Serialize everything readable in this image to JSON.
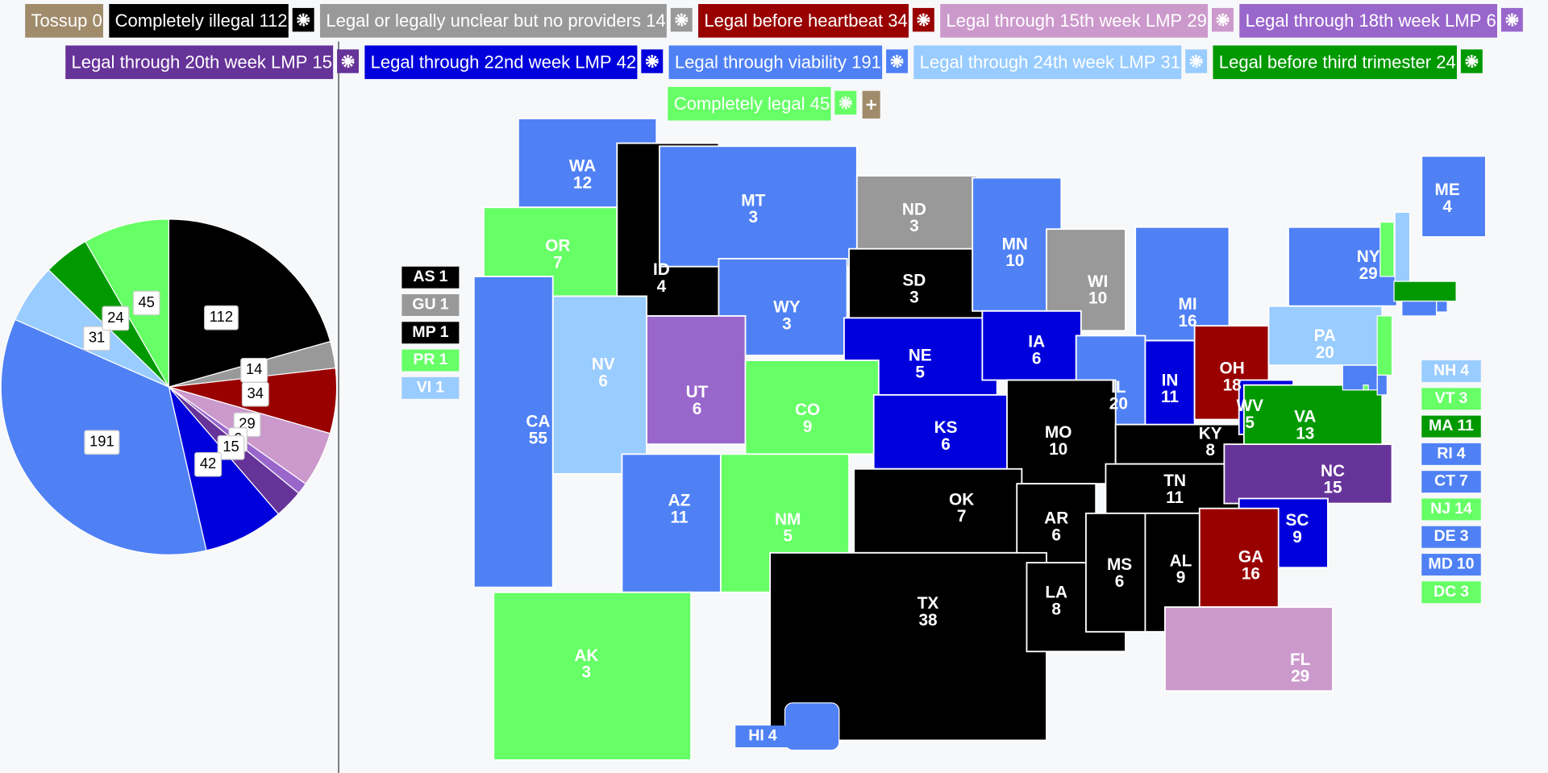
{
  "legend": [
    {
      "name": "Tossup",
      "count": 0,
      "color": "#a08b6b"
    },
    {
      "name": "Completely illegal",
      "count": 112,
      "color": "#000000"
    },
    {
      "name": "Legal or legally unclear but no providers",
      "count": 14,
      "color": "#999999"
    },
    {
      "name": "Legal before heartbeat",
      "count": 34,
      "color": "#990000"
    },
    {
      "name": "Legal through 15th week LMP",
      "count": 29,
      "color": "#cc99cc"
    },
    {
      "name": "Legal through 18th week LMP",
      "count": 6,
      "color": "#9966cc"
    },
    {
      "name": "Legal through 20th week LMP",
      "count": 15,
      "color": "#663399"
    },
    {
      "name": "Legal through 22nd week LMP",
      "count": 42,
      "color": "#0000dd"
    },
    {
      "name": "Legal through viability",
      "count": 191,
      "color": "#4f81f5"
    },
    {
      "name": "Legal through 24th week LMP",
      "count": 31,
      "color": "#99ccff"
    },
    {
      "name": "Legal before third trimester",
      "count": 24,
      "color": "#009900"
    },
    {
      "name": "Completely legal",
      "count": 45,
      "color": "#66ff66"
    }
  ],
  "states": [
    {
      "abbr": "WA",
      "ev": 12,
      "color": "#4f81f5"
    },
    {
      "abbr": "OR",
      "ev": 7,
      "color": "#66ff66"
    },
    {
      "abbr": "ID",
      "ev": 4,
      "color": "#000000"
    },
    {
      "abbr": "MT",
      "ev": 3,
      "color": "#4f81f5"
    },
    {
      "abbr": "ND",
      "ev": 3,
      "color": "#999999"
    },
    {
      "abbr": "SD",
      "ev": 3,
      "color": "#000000"
    },
    {
      "abbr": "WY",
      "ev": 3,
      "color": "#4f81f5"
    },
    {
      "abbr": "NE",
      "ev": 5,
      "color": "#0000dd"
    },
    {
      "abbr": "MN",
      "ev": 10,
      "color": "#4f81f5"
    },
    {
      "abbr": "WI",
      "ev": 10,
      "color": "#999999"
    },
    {
      "abbr": "MI",
      "ev": 16,
      "color": "#4f81f5"
    },
    {
      "abbr": "IA",
      "ev": 6,
      "color": "#0000dd"
    },
    {
      "abbr": "IL",
      "ev": 20,
      "color": "#4f81f5"
    },
    {
      "abbr": "IN",
      "ev": 11,
      "color": "#0000dd"
    },
    {
      "abbr": "OH",
      "ev": 18,
      "color": "#990000"
    },
    {
      "abbr": "PA",
      "ev": 20,
      "color": "#99ccff"
    },
    {
      "abbr": "NY",
      "ev": 29,
      "color": "#4f81f5"
    },
    {
      "abbr": "ME",
      "ev": 4,
      "color": "#4f81f5"
    },
    {
      "abbr": "NV",
      "ev": 6,
      "color": "#99ccff"
    },
    {
      "abbr": "CA",
      "ev": 55,
      "color": "#4f81f5"
    },
    {
      "abbr": "UT",
      "ev": 6,
      "color": "#9966cc"
    },
    {
      "abbr": "CO",
      "ev": 9,
      "color": "#66ff66"
    },
    {
      "abbr": "KS",
      "ev": 6,
      "color": "#0000dd"
    },
    {
      "abbr": "MO",
      "ev": 10,
      "color": "#000000"
    },
    {
      "abbr": "KY",
      "ev": 8,
      "color": "#000000"
    },
    {
      "abbr": "WV",
      "ev": 5,
      "color": "#0000dd"
    },
    {
      "abbr": "VA",
      "ev": 13,
      "color": "#009900"
    },
    {
      "abbr": "AZ",
      "ev": 11,
      "color": "#4f81f5"
    },
    {
      "abbr": "NM",
      "ev": 5,
      "color": "#66ff66"
    },
    {
      "abbr": "OK",
      "ev": 7,
      "color": "#000000"
    },
    {
      "abbr": "AR",
      "ev": 6,
      "color": "#000000"
    },
    {
      "abbr": "TN",
      "ev": 11,
      "color": "#000000"
    },
    {
      "abbr": "NC",
      "ev": 15,
      "color": "#663399"
    },
    {
      "abbr": "SC",
      "ev": 9,
      "color": "#0000dd"
    },
    {
      "abbr": "TX",
      "ev": 38,
      "color": "#000000"
    },
    {
      "abbr": "LA",
      "ev": 8,
      "color": "#000000"
    },
    {
      "abbr": "MS",
      "ev": 6,
      "color": "#000000"
    },
    {
      "abbr": "AL",
      "ev": 9,
      "color": "#000000"
    },
    {
      "abbr": "GA",
      "ev": 16,
      "color": "#990000"
    },
    {
      "abbr": "FL",
      "ev": 29,
      "color": "#cc99cc"
    },
    {
      "abbr": "AK",
      "ev": 3,
      "color": "#66ff66"
    }
  ],
  "small_states": [
    {
      "abbr": "NH",
      "ev": 4,
      "color": "#99ccff"
    },
    {
      "abbr": "VT",
      "ev": 3,
      "color": "#66ff66"
    },
    {
      "abbr": "MA",
      "ev": 11,
      "color": "#009900"
    },
    {
      "abbr": "RI",
      "ev": 4,
      "color": "#4f81f5"
    },
    {
      "abbr": "CT",
      "ev": 7,
      "color": "#4f81f5"
    },
    {
      "abbr": "NJ",
      "ev": 14,
      "color": "#66ff66"
    },
    {
      "abbr": "DE",
      "ev": 3,
      "color": "#4f81f5"
    },
    {
      "abbr": "MD",
      "ev": 10,
      "color": "#4f81f5"
    },
    {
      "abbr": "DC",
      "ev": 3,
      "color": "#66ff66"
    },
    {
      "abbr": "HI",
      "ev": 4,
      "color": "#4f81f5"
    }
  ],
  "territories": [
    {
      "abbr": "AS",
      "ev": 1,
      "color": "#000000"
    },
    {
      "abbr": "GU",
      "ev": 1,
      "color": "#999999"
    },
    {
      "abbr": "MP",
      "ev": 1,
      "color": "#000000"
    },
    {
      "abbr": "PR",
      "ev": 1,
      "color": "#66ff66"
    },
    {
      "abbr": "VI",
      "ev": 1,
      "color": "#99ccff"
    }
  ]
}
